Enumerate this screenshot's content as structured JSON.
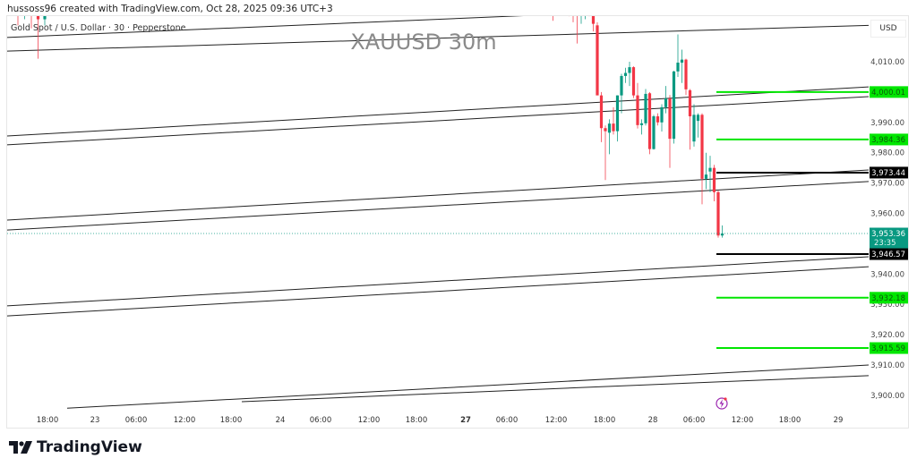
{
  "header": {
    "credit": "hussoss96 created with TradingView.com, Oct 28, 2025 09:36 UTC+3",
    "legend": "Gold Spot / U.S. Dollar · 30 · Pepperstone",
    "watermark": "XAUUSD 30m",
    "currency": "USD"
  },
  "footer": {
    "logo_text": "TradingView"
  },
  "icons": {
    "alert": "lightning-icon",
    "logo": "tradingview-logo-icon"
  },
  "chart_data": {
    "type": "candlestick",
    "symbol": "XAUUSD",
    "interval": "30m",
    "ylim": [
      3895,
      4025
    ],
    "y_ticks": [
      "4,010.00",
      "3,990.00",
      "3,980.00",
      "3,970.00",
      "3,960.00",
      "3,940.00",
      "3,930.00",
      "3,920.00",
      "3,910.00",
      "3,900.00"
    ],
    "y_tick_values": [
      4010,
      3990,
      3980,
      3970,
      3960,
      3940,
      3930,
      3920,
      3910,
      3900
    ],
    "x_ticks": [
      {
        "label": "18:00",
        "bold": false
      },
      {
        "label": "23",
        "bold": false
      },
      {
        "label": "06:00",
        "bold": false
      },
      {
        "label": "12:00",
        "bold": false
      },
      {
        "label": "18:00",
        "bold": false
      },
      {
        "label": "24",
        "bold": false
      },
      {
        "label": "06:00",
        "bold": false
      },
      {
        "label": "12:00",
        "bold": false
      },
      {
        "label": "18:00",
        "bold": false
      },
      {
        "label": "27",
        "bold": true
      },
      {
        "label": "06:00",
        "bold": false
      },
      {
        "label": "12:00",
        "bold": false
      },
      {
        "label": "18:00",
        "bold": false
      },
      {
        "label": "28",
        "bold": false
      },
      {
        "label": "06:00",
        "bold": false
      },
      {
        "label": "12:00",
        "bold": false
      },
      {
        "label": "18:00",
        "bold": false
      },
      {
        "label": "29",
        "bold": false
      }
    ],
    "colors": {
      "up": "#089981",
      "down": "#f23645",
      "level_green": "#00e600",
      "level_black": "#000000",
      "current": "#089981"
    },
    "early_candles": [
      {
        "t": "Oct 22 16:30",
        "o": 4030,
        "h": 4032,
        "l": 4022,
        "c": 4026
      },
      {
        "t": "Oct 22 17:00",
        "o": 4028,
        "h": 4031,
        "l": 4024,
        "c": 4030
      },
      {
        "t": "Oct 22 17:30",
        "o": 4031,
        "h": 4032,
        "l": 4021,
        "c": 4027
      },
      {
        "t": "Oct 22 18:00",
        "o": 4035,
        "h": 4036,
        "l": 4011,
        "c": 4024
      },
      {
        "t": "Oct 22 18:30",
        "o": 4024,
        "h": 4036,
        "l": 4022,
        "c": 4034
      }
    ],
    "candles": [
      {
        "t": "Oct 27 12:00",
        "o": 4029,
        "h": 4030,
        "l": 4023.5,
        "c": 4026
      },
      {
        "t": "Oct 27 12:30",
        "o": 4030,
        "h": 4032,
        "l": 4026,
        "c": 4031
      },
      {
        "t": "Oct 27 13:00",
        "o": 4031,
        "h": 4033,
        "l": 4027,
        "c": 4032
      },
      {
        "t": "Oct 27 13:30",
        "o": 4032,
        "h": 4034,
        "l": 4026,
        "c": 4033
      },
      {
        "t": "Oct 27 14:00",
        "o": 4033,
        "h": 4034,
        "l": 4025,
        "c": 4031
      },
      {
        "t": "Oct 27 14:30",
        "o": 4029,
        "h": 4030,
        "l": 4023,
        "c": 4027.5
      },
      {
        "t": "Oct 27 15:00",
        "o": 4029,
        "h": 4031,
        "l": 4016,
        "c": 4027
      },
      {
        "t": "Oct 27 15:30",
        "o": 4027,
        "h": 4030,
        "l": 4022.5,
        "c": 4028
      },
      {
        "t": "Oct 27 16:00",
        "o": 4028,
        "h": 4031,
        "l": 4024,
        "c": 4029
      },
      {
        "t": "Oct 27 16:30",
        "o": 4030,
        "h": 4032,
        "l": 4025,
        "c": 4029
      },
      {
        "t": "Oct 27 17:00",
        "o": 4026,
        "h": 4027,
        "l": 4020,
        "c": 4022.5
      },
      {
        "t": "Oct 27 17:30",
        "o": 4022,
        "h": 4023,
        "l": 4000,
        "c": 3998.9
      },
      {
        "t": "Oct 27 18:00",
        "o": 3998.9,
        "h": 4000,
        "l": 3983.5,
        "c": 3988.1
      },
      {
        "t": "Oct 27 18:30",
        "o": 3988.1,
        "h": 3989,
        "l": 3971,
        "c": 3987.1
      },
      {
        "t": "Oct 27 19:00",
        "o": 3986.6,
        "h": 3991,
        "l": 3979.5,
        "c": 3989.6
      },
      {
        "t": "Oct 27 19:30",
        "o": 3989.6,
        "h": 3995,
        "l": 3986,
        "c": 3987.1
      },
      {
        "t": "Oct 27 20:00",
        "o": 3987.1,
        "h": 3998.9,
        "l": 3983.7,
        "c": 3998.9
      },
      {
        "t": "Oct 27 20:30",
        "o": 3998.9,
        "h": 4006,
        "l": 3993,
        "c": 4005.3
      },
      {
        "t": "Oct 27 21:00",
        "o": 4005.3,
        "h": 4008,
        "l": 4003,
        "c": 4006.3
      },
      {
        "t": "Oct 27 21:30",
        "o": 4006.3,
        "h": 4010,
        "l": 4002,
        "c": 4008.2
      },
      {
        "t": "Oct 27 22:00",
        "o": 4008.2,
        "h": 4008.5,
        "l": 3998,
        "c": 3998.9
      },
      {
        "t": "Oct 27 22:30",
        "o": 3998.9,
        "h": 4003,
        "l": 3988,
        "c": 3989.1
      },
      {
        "t": "Oct 27 23:00",
        "o": 3989.1,
        "h": 3991,
        "l": 3986,
        "c": 3989.7
      },
      {
        "t": "Oct 27 23:30",
        "o": 3989.7,
        "h": 4001,
        "l": 3989,
        "c": 3999.4
      },
      {
        "t": "Oct 28 00:00",
        "o": 3999.6,
        "h": 4000,
        "l": 3979.5,
        "c": 3981.2
      },
      {
        "t": "Oct 28 00:30",
        "o": 3981.2,
        "h": 3992.5,
        "l": 3981,
        "c": 3992
      },
      {
        "t": "Oct 28 01:00",
        "o": 3992,
        "h": 3993,
        "l": 3989,
        "c": 3990
      },
      {
        "t": "Oct 28 01:30",
        "o": 3990,
        "h": 3996,
        "l": 3987,
        "c": 3995
      },
      {
        "t": "Oct 28 02:00",
        "o": 3995,
        "h": 4002,
        "l": 3993,
        "c": 3997.9
      },
      {
        "t": "Oct 28 02:30",
        "o": 3997.9,
        "h": 3999,
        "l": 3975,
        "c": 3984.6
      },
      {
        "t": "Oct 28 03:00",
        "o": 3984.6,
        "h": 4007,
        "l": 3983,
        "c": 4006.8
      },
      {
        "t": "Oct 28 03:30",
        "o": 4006.8,
        "h": 4019,
        "l": 4005,
        "c": 4009.7
      },
      {
        "t": "Oct 28 04:00",
        "o": 4009.7,
        "h": 4014,
        "l": 4003,
        "c": 4010.7
      },
      {
        "t": "Oct 28 04:30",
        "o": 4010.7,
        "h": 4011,
        "l": 3999,
        "c": 4000.9
      },
      {
        "t": "Oct 28 05:00",
        "o": 4000.6,
        "h": 4001,
        "l": 3981,
        "c": 3992
      },
      {
        "t": "Oct 28 05:30",
        "o": 3983.7,
        "h": 3996,
        "l": 3982,
        "c": 3992.5
      },
      {
        "t": "Oct 28 06:00",
        "o": 3990.5,
        "h": 3993,
        "l": 3985,
        "c": 3992.5
      },
      {
        "t": "Oct 28 06:30",
        "o": 3992.5,
        "h": 3993,
        "l": 3963,
        "c": 3971.4
      },
      {
        "t": "Oct 28 07:00",
        "o": 3971.4,
        "h": 3980,
        "l": 3968,
        "c": 3972.8
      },
      {
        "t": "Oct 28 07:30",
        "o": 3973.8,
        "h": 3979,
        "l": 3967,
        "c": 3975
      },
      {
        "t": "Oct 28 08:00",
        "o": 3975,
        "h": 3976,
        "l": 3964,
        "c": 3967
      },
      {
        "t": "Oct 28 08:30",
        "o": 3967,
        "h": 3967.5,
        "l": 3952,
        "c": 3952.7
      },
      {
        "t": "Oct 28 09:00",
        "o": 3952.7,
        "h": 3956,
        "l": 3952,
        "c": 3953.36
      }
    ],
    "trend_lines": [
      {
        "start_price": 4018.0,
        "end_price": 4030.0
      },
      {
        "start_price": 4013.5,
        "end_price": 4022.0
      },
      {
        "start_price": 3985.5,
        "end_price": 4001.7
      },
      {
        "start_price": 3982.6,
        "end_price": 3998.5
      },
      {
        "start_price": 3957.8,
        "end_price": 3974.3
      },
      {
        "start_price": 3954.5,
        "end_price": 3970.5
      },
      {
        "start_price": 3929.5,
        "end_price": 3945.7
      },
      {
        "start_price": 3926.2,
        "end_price": 3942.4
      },
      {
        "start_price": 3894.7,
        "end_price": 3910.0
      },
      {
        "start_price": 3894.7,
        "end_price": 3906.5
      }
    ],
    "levels": [
      {
        "price": 4000.01,
        "label": "4,000.01",
        "color": "green"
      },
      {
        "price": 3984.36,
        "label": "3,984.36",
        "color": "green"
      },
      {
        "price": 3973.44,
        "label": "3,973.44",
        "color": "black"
      },
      {
        "price": 3946.57,
        "label": "3,946.57",
        "color": "black"
      },
      {
        "price": 3932.18,
        "label": "3,932.18",
        "color": "green"
      },
      {
        "price": 3915.59,
        "label": "3,915.59",
        "color": "green"
      }
    ],
    "current_price": {
      "price": 3953.36,
      "label": "3,953.36",
      "countdown": "23:35"
    }
  }
}
